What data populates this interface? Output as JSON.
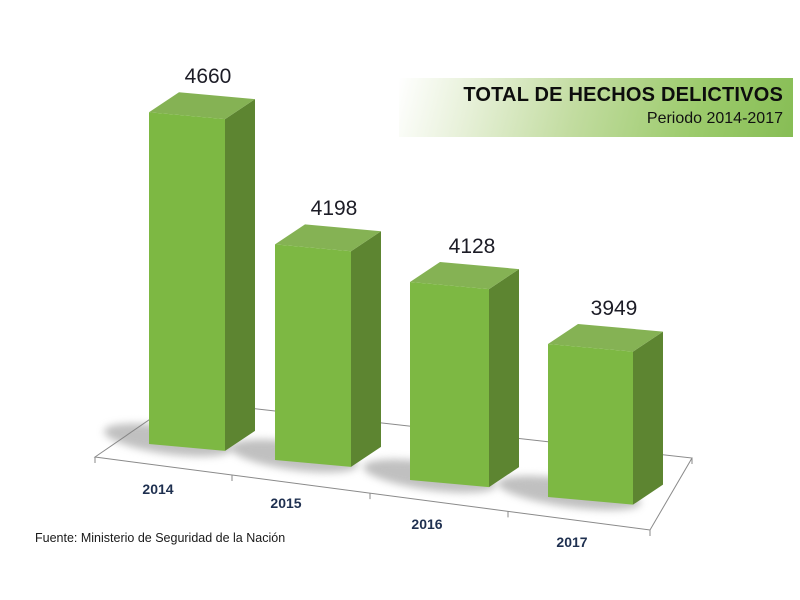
{
  "banner": {
    "title": "TOTAL DE HECHOS DELICTIVOS",
    "subtitle": "Periodo 2014-2017"
  },
  "footer": {
    "source": "Fuente: Ministerio de Seguridad de la Nación"
  },
  "chart_data": {
    "type": "bar",
    "style": "3d-column",
    "title": "TOTAL DE HECHOS DELICTIVOS",
    "subtitle": "Periodo 2014-2017",
    "categories": [
      "2014",
      "2015",
      "2016",
      "2017"
    ],
    "values": [
      4660,
      4198,
      4128,
      3949
    ],
    "xlabel": "",
    "ylabel": "",
    "legend": "none",
    "grid": false,
    "data_labels": true,
    "value_axis_visible": false,
    "value_axis_starts_at_zero": false,
    "colors": {
      "bar_front": "#7db843",
      "bar_top": "#85b254",
      "bar_side": "#5d8531",
      "floor_fill": "#ffffff",
      "axis_line": "#8a8a8a",
      "shadow": "#828282",
      "banner_green": "#87bd55",
      "category_label": "#1f3050",
      "value_label": "#1c1c26"
    }
  }
}
